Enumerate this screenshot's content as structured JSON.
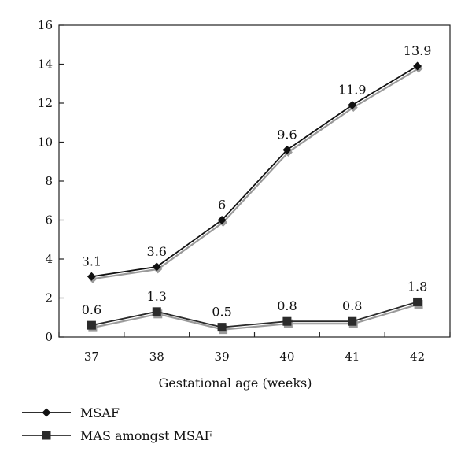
{
  "chart_data": {
    "type": "line",
    "title": "",
    "xlabel": "Gestational age (weeks)",
    "ylabel": "",
    "categories": [
      "37",
      "38",
      "39",
      "40",
      "41",
      "42"
    ],
    "x": [
      37,
      38,
      39,
      40,
      41,
      42
    ],
    "ylim": [
      0,
      16
    ],
    "yticks": [
      0,
      2,
      4,
      6,
      8,
      10,
      12,
      14,
      16
    ],
    "grid": false,
    "legend_position": "bottom-left",
    "series": [
      {
        "name": "MSAF",
        "marker": "diamond",
        "color": "#111111",
        "shadow_color": "#9a9a9a",
        "values": [
          3.1,
          3.6,
          6,
          9.6,
          11.9,
          13.9
        ],
        "labels": [
          "3.1",
          "3.6",
          "6",
          "9.6",
          "11.9",
          "13.9"
        ]
      },
      {
        "name": "MAS amongst MSAF",
        "marker": "square",
        "color": "#2b2b2b",
        "shadow_color": "#9a9a9a",
        "values": [
          0.6,
          1.3,
          0.5,
          0.8,
          0.8,
          1.8
        ],
        "labels": [
          "0.6",
          "1.3",
          "0.5",
          "0.8",
          "0.8",
          "1.8"
        ]
      }
    ]
  }
}
